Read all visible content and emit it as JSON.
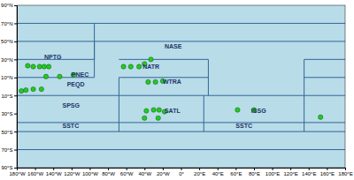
{
  "chart_data": {
    "type": "scatter",
    "xlim": [
      -180,
      180
    ],
    "ylim": [
      -90,
      90
    ],
    "xticks": [
      {
        "value": -180,
        "label": "180°W"
      },
      {
        "value": -160,
        "label": "160°W"
      },
      {
        "value": -140,
        "label": "140°W"
      },
      {
        "value": -120,
        "label": "120°W"
      },
      {
        "value": -100,
        "label": "100°W"
      },
      {
        "value": -80,
        "label": "80°W"
      },
      {
        "value": -60,
        "label": "60°W"
      },
      {
        "value": -40,
        "label": "40°W"
      },
      {
        "value": -20,
        "label": "20°W"
      },
      {
        "value": 0,
        "label": "0°"
      },
      {
        "value": 20,
        "label": "20°E"
      },
      {
        "value": 40,
        "label": "40°E"
      },
      {
        "value": 60,
        "label": "60°E"
      },
      {
        "value": 80,
        "label": "80°E"
      },
      {
        "value": 100,
        "label": "100°E"
      },
      {
        "value": 120,
        "label": "120°E"
      },
      {
        "value": 140,
        "label": "140°E"
      },
      {
        "value": 160,
        "label": "160°E"
      },
      {
        "value": 180,
        "label": "180°E"
      }
    ],
    "yticks": [
      {
        "value": -90,
        "label": "90°S"
      },
      {
        "value": -70,
        "label": "70°S"
      },
      {
        "value": -50,
        "label": "50°S"
      },
      {
        "value": -30,
        "label": "30°S"
      },
      {
        "value": -10,
        "label": "10°S"
      },
      {
        "value": 10,
        "label": "10°N"
      },
      {
        "value": 30,
        "label": "30°N"
      },
      {
        "value": 50,
        "label": "50°N"
      },
      {
        "value": 70,
        "label": "70°N"
      },
      {
        "value": 90,
        "label": "90°N"
      }
    ],
    "series": [
      {
        "type": "line",
        "color": "#336699",
        "line_style": "solid",
        "x": [
          -180,
          180
        ],
        "values": [
          70,
          70
        ]
      },
      {
        "type": "line",
        "color": "#336699",
        "line_style": "solid",
        "x": [
          -180,
          180
        ],
        "values": [
          50,
          50
        ]
      },
      {
        "type": "line",
        "color": "#336699",
        "line_style": "solid",
        "x": [
          -180,
          180
        ],
        "values": [
          -50,
          -50
        ]
      },
      {
        "type": "line",
        "color": "#336699",
        "line_style": "solid",
        "x": [
          -180,
          180
        ],
        "values": [
          -70,
          -70
        ]
      },
      {
        "type": "line",
        "color": "#336699",
        "line_style": "solid",
        "x": [
          -180,
          -95
        ],
        "values": [
          30,
          30
        ]
      },
      {
        "type": "line",
        "color": "#336699",
        "line_style": "solid",
        "x": [
          -180,
          -95
        ],
        "values": [
          10,
          10
        ]
      },
      {
        "type": "line",
        "color": "#336699",
        "line_style": "solid",
        "x": [
          -180,
          -68
        ],
        "values": [
          -10,
          -10
        ]
      },
      {
        "type": "line",
        "color": "#336699",
        "line_style": "solid",
        "x": [
          -180,
          -68
        ],
        "values": [
          -40,
          -40
        ]
      },
      {
        "type": "line",
        "color": "#336699",
        "line_style": "solid",
        "x": [
          -68,
          30
        ],
        "values": [
          30,
          30
        ]
      },
      {
        "type": "line",
        "color": "#336699",
        "line_style": "solid",
        "x": [
          -68,
          30
        ],
        "values": [
          10,
          10
        ]
      },
      {
        "type": "line",
        "color": "#336699",
        "line_style": "solid",
        "x": [
          -68,
          25
        ],
        "values": [
          -10,
          -10
        ]
      },
      {
        "type": "line",
        "color": "#336699",
        "line_style": "solid",
        "x": [
          -68,
          25
        ],
        "values": [
          -40,
          -40
        ]
      },
      {
        "type": "line",
        "color": "#336699",
        "line_style": "solid",
        "x": [
          25,
          135
        ],
        "values": [
          -10,
          -10
        ]
      },
      {
        "type": "line",
        "color": "#336699",
        "line_style": "solid",
        "x": [
          25,
          135
        ],
        "values": [
          -40,
          -40
        ]
      },
      {
        "type": "line",
        "color": "#336699",
        "line_style": "solid",
        "x": [
          135,
          180
        ],
        "values": [
          30,
          30
        ]
      },
      {
        "type": "line",
        "color": "#336699",
        "line_style": "solid",
        "x": [
          135,
          180
        ],
        "values": [
          10,
          10
        ]
      },
      {
        "type": "line",
        "color": "#336699",
        "line_style": "solid",
        "x": [
          135,
          180
        ],
        "values": [
          -10,
          -10
        ]
      },
      {
        "type": "line",
        "color": "#336699",
        "line_style": "solid",
        "x": [
          135,
          180
        ],
        "values": [
          -40,
          -40
        ]
      },
      {
        "type": "line",
        "color": "#336699",
        "line_style": "solid",
        "x": [
          -95,
          -95
        ],
        "values": [
          30,
          70
        ]
      },
      {
        "type": "line",
        "color": "#336699",
        "line_style": "solid",
        "x": [
          -95,
          -95
        ],
        "values": [
          10,
          50
        ]
      },
      {
        "type": "line",
        "color": "#336699",
        "line_style": "solid",
        "x": [
          -68,
          -68
        ],
        "values": [
          -10,
          10
        ]
      },
      {
        "type": "line",
        "color": "#336699",
        "line_style": "solid",
        "x": [
          -68,
          -68
        ],
        "values": [
          -40,
          -10
        ]
      },
      {
        "type": "line",
        "color": "#336699",
        "line_style": "solid",
        "x": [
          -68,
          -68
        ],
        "values": [
          -50,
          -40
        ]
      },
      {
        "type": "line",
        "color": "#336699",
        "line_style": "solid",
        "x": [
          30,
          30
        ],
        "values": [
          -10,
          30
        ]
      },
      {
        "type": "line",
        "color": "#336699",
        "line_style": "solid",
        "x": [
          25,
          25
        ],
        "values": [
          -40,
          -10
        ]
      },
      {
        "type": "line",
        "color": "#336699",
        "line_style": "solid",
        "x": [
          25,
          25
        ],
        "values": [
          -50,
          -40
        ]
      },
      {
        "type": "line",
        "color": "#336699",
        "line_style": "solid",
        "x": [
          135,
          135
        ],
        "values": [
          -10,
          30
        ]
      },
      {
        "type": "line",
        "color": "#336699",
        "line_style": "solid",
        "x": [
          135,
          135
        ],
        "values": [
          -40,
          -10
        ]
      },
      {
        "type": "line",
        "color": "#336699",
        "line_style": "solid",
        "x": [
          135,
          135
        ],
        "values": [
          -50,
          -40
        ]
      },
      {
        "type": "scatter",
        "color": "#22cc22",
        "marker": "circle",
        "x": [
          -168,
          -162,
          -155,
          -150,
          -145,
          -148,
          -133,
          -118,
          -175,
          -170,
          -162,
          -153,
          -63,
          -55,
          -46,
          -40,
          -33,
          -36,
          -28,
          -20,
          -38,
          -30,
          -24,
          -18,
          -40,
          -25,
          62,
          80,
          153
        ],
        "values": [
          23,
          22,
          22,
          22,
          22,
          11,
          11,
          13,
          -5,
          -4,
          -3,
          -3,
          22,
          22,
          22,
          25,
          30,
          5,
          5,
          6,
          -27,
          -26,
          -26,
          -28,
          -35,
          -35,
          -26,
          -26,
          -34
        ]
      }
    ],
    "annotations": [
      {
        "text": "NPTG",
        "x": -150,
        "y": 32
      },
      {
        "text": "PNEC",
        "x": -120,
        "y": 13
      },
      {
        "text": "PEQD",
        "x": -125,
        "y": 2
      },
      {
        "text": "SPSG",
        "x": -130,
        "y": -22
      },
      {
        "text": "SSTC",
        "x": -130,
        "y": -44
      },
      {
        "text": "NASE",
        "x": -18,
        "y": 44
      },
      {
        "text": "NATR",
        "x": -42,
        "y": 21
      },
      {
        "text": "WTRA",
        "x": -20,
        "y": 5
      },
      {
        "text": "SATL",
        "x": -18,
        "y": -28
      },
      {
        "text": "SSTC",
        "x": 60,
        "y": -44
      },
      {
        "text": "ISSG",
        "x": 77,
        "y": -28
      }
    ]
  }
}
